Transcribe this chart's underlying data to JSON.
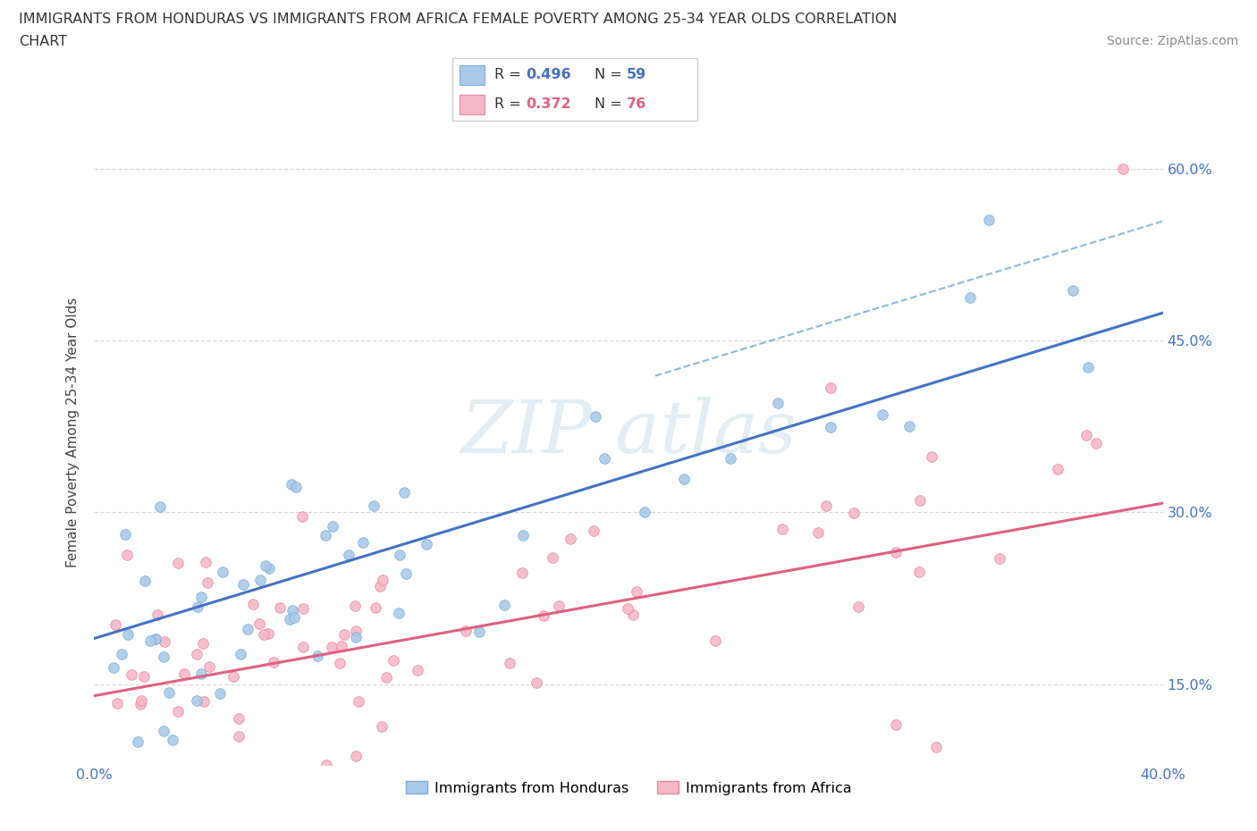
{
  "title_line1": "IMMIGRANTS FROM HONDURAS VS IMMIGRANTS FROM AFRICA FEMALE POVERTY AMONG 25-34 YEAR OLDS CORRELATION",
  "title_line2": "CHART",
  "source": "Source: ZipAtlas.com",
  "ylabel": "Female Poverty Among 25-34 Year Olds",
  "xlim": [
    0.0,
    0.4
  ],
  "ylim": [
    0.08,
    0.66
  ],
  "ytick_positions": [
    0.15,
    0.3,
    0.45,
    0.6
  ],
  "ytick_labels": [
    "15.0%",
    "30.0%",
    "45.0%",
    "60.0%"
  ],
  "xtick_positions": [
    0.0,
    0.1,
    0.2,
    0.3,
    0.4
  ],
  "xtick_labels": [
    "0.0%",
    "",
    "",
    "",
    "40.0%"
  ],
  "color_honduras_fill": "#aac9e8",
  "color_honduras_edge": "#7aafd4",
  "color_africa_fill": "#f5b8c8",
  "color_africa_edge": "#e888a0",
  "color_line_honduras": "#4472c4",
  "color_line_africa": "#e06080",
  "color_line_dashed": "#7aabdb",
  "color_tick_labels": "#4472c4",
  "legend_R_honduras": "0.496",
  "legend_N_honduras": "59",
  "legend_R_africa": "0.372",
  "legend_N_africa": "76",
  "watermark_text": "ZIPatlas",
  "watermark_color": "#c8dce8",
  "background_color": "#ffffff",
  "grid_color": "#c8c8c8",
  "bottom_label_honduras": "Immigrants from Honduras",
  "bottom_label_africa": "Immigrants from Africa"
}
